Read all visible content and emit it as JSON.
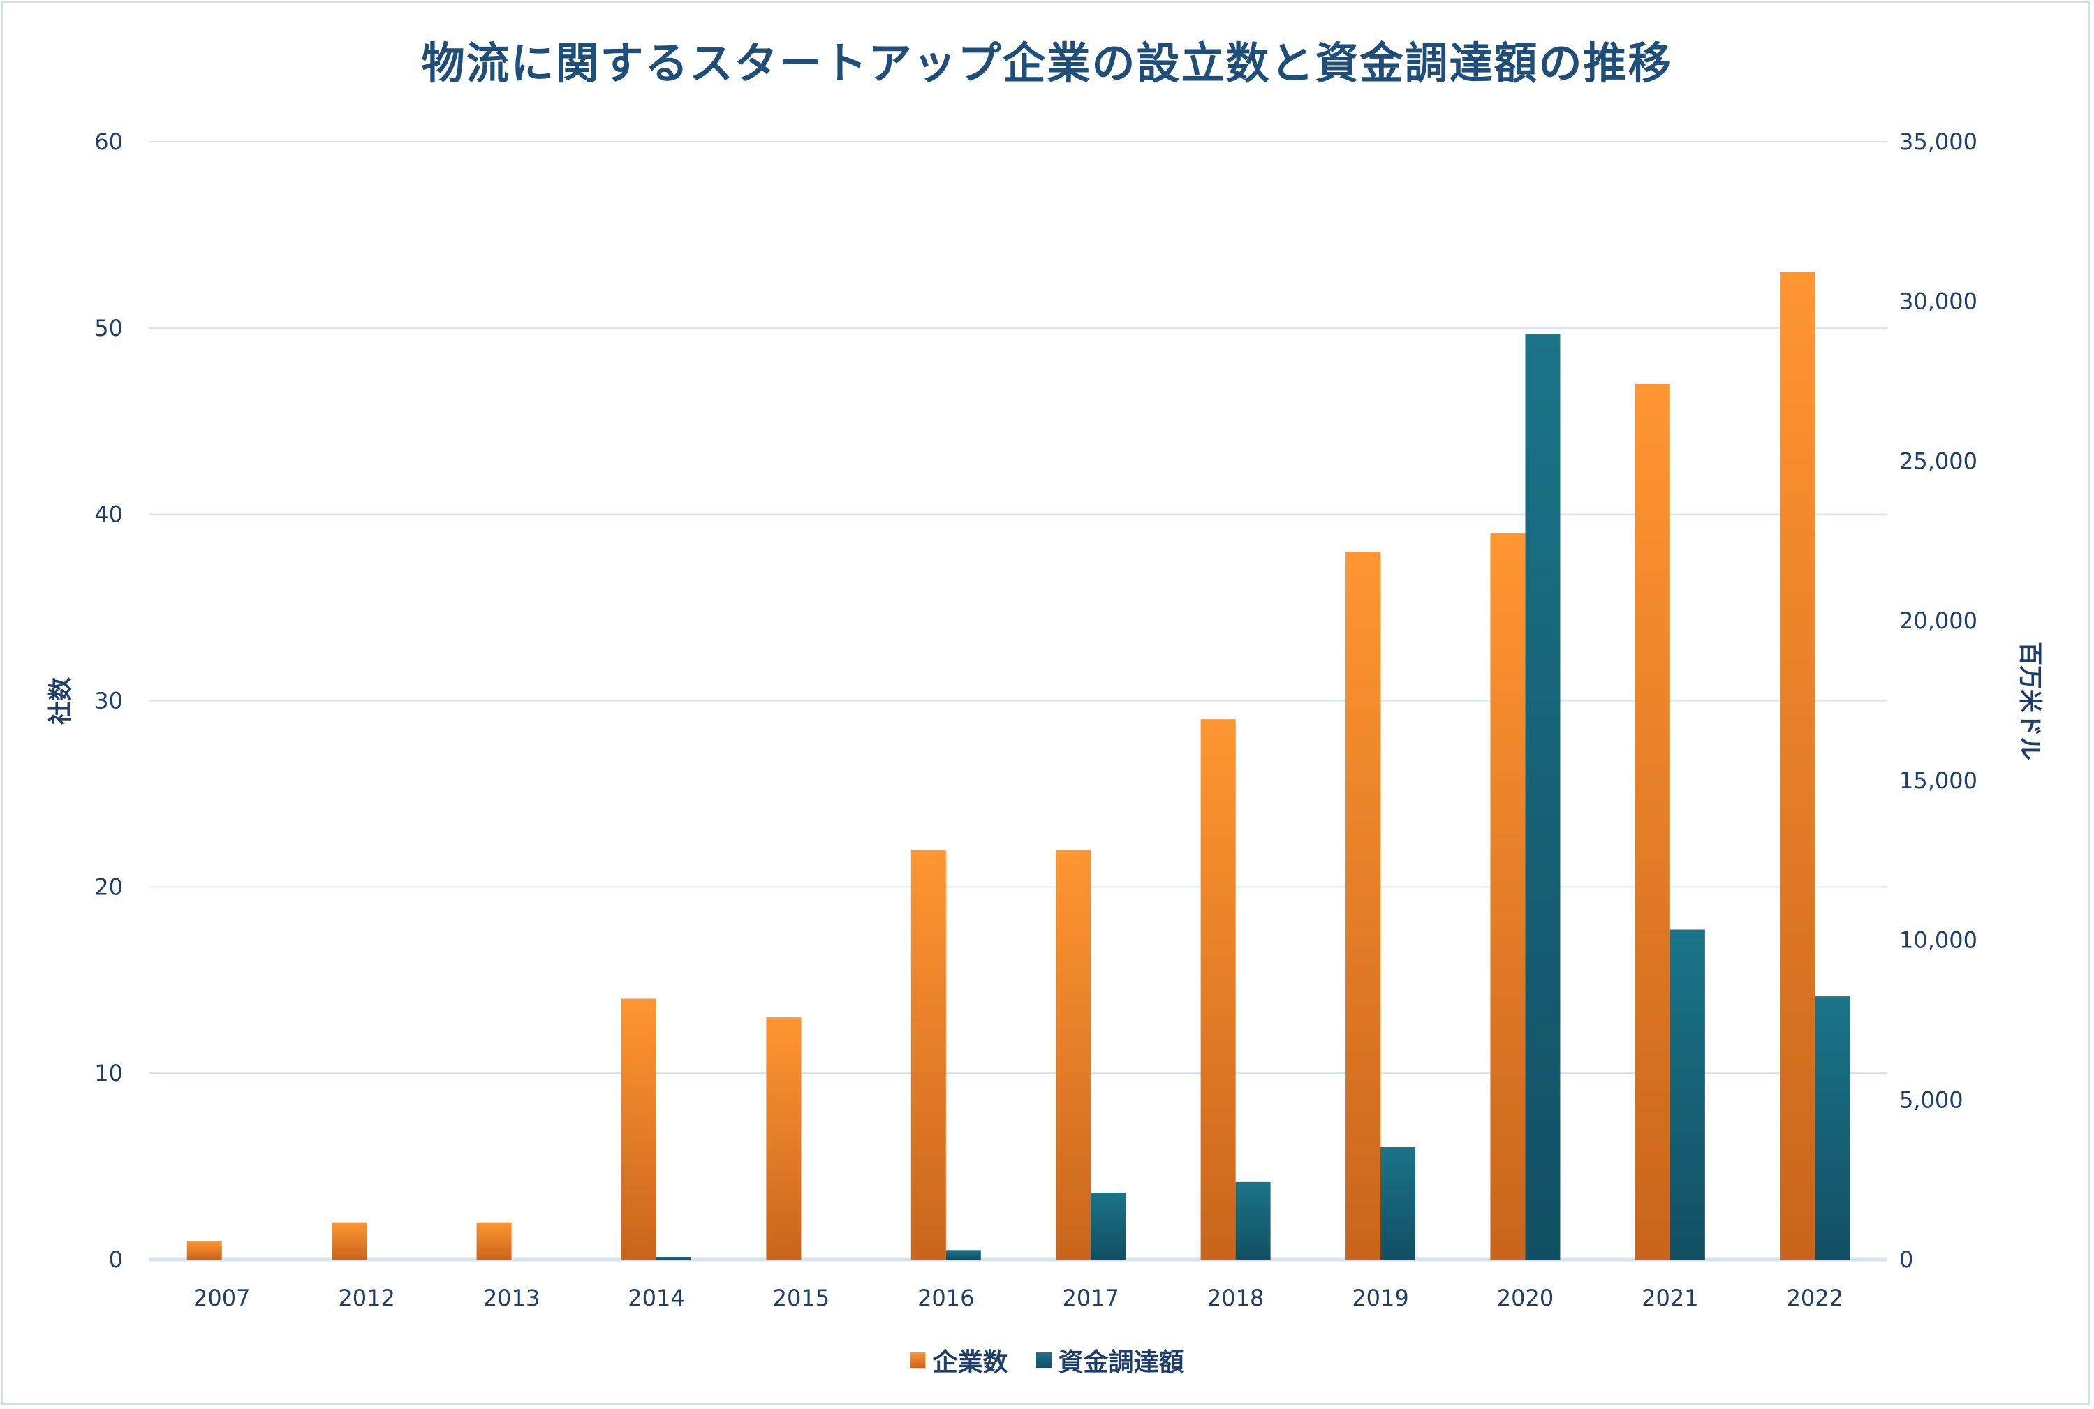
{
  "chart_data": {
    "type": "bar",
    "title": "物流に関するスタートアップ企業の設立数と資金調達額の推移",
    "categories": [
      "2007",
      "2012",
      "2013",
      "2014",
      "2015",
      "2016",
      "2017",
      "2018",
      "2019",
      "2020",
      "2021",
      "2022"
    ],
    "series": [
      {
        "name": "企業数",
        "axis": "left",
        "color": "#f0821e",
        "values": [
          1,
          2,
          2,
          14,
          13,
          22,
          22,
          29,
          38,
          39,
          47,
          53
        ]
      },
      {
        "name": "資金調達額",
        "axis": "right",
        "color": "#176f85",
        "values": [
          0,
          0,
          0,
          80,
          0,
          300,
          2100,
          2430,
          3520,
          28980,
          10330,
          8240
        ]
      }
    ],
    "ylabel": "社数",
    "y2label": "百万米ドル",
    "ylim": [
      0,
      60
    ],
    "y2lim": [
      0,
      35000
    ],
    "yticks": [
      "0",
      "10",
      "20",
      "30",
      "40",
      "50",
      "60"
    ],
    "y2ticks": [
      "0",
      "5,000",
      "10,000",
      "15,000",
      "20,000",
      "25,000",
      "30,000",
      "35,000"
    ],
    "grid": true,
    "legend": "bottom"
  }
}
